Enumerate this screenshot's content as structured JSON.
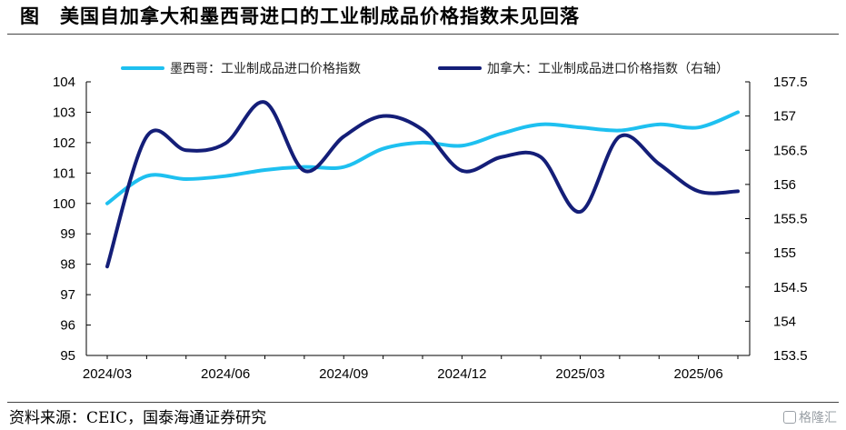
{
  "header": {
    "fig_label": "图",
    "title": "美国自加拿大和墨西哥进口的工业制成品价格指数未见回落"
  },
  "footer": {
    "source": "资料来源：CEIC，国泰海通证券研究",
    "watermark": "格隆汇"
  },
  "colors": {
    "mexico": "#1ec0f0",
    "canada": "#141e78"
  },
  "chart_data": {
    "type": "line",
    "x": [
      "2024/03",
      "2024/04",
      "2024/05",
      "2024/06",
      "2024/07",
      "2024/08",
      "2024/09",
      "2024/10",
      "2024/11",
      "2024/12",
      "2025/01",
      "2025/02",
      "2025/03",
      "2025/04",
      "2025/05",
      "2025/06",
      "2025/07"
    ],
    "x_tick_labels": [
      "2024/03",
      "2024/06",
      "2024/09",
      "2024/12",
      "2025/03",
      "2025/06"
    ],
    "series": [
      {
        "name": "墨西哥：工业制成品进口价格指数",
        "axis": "left",
        "color": "#1ec0f0",
        "values": [
          100.0,
          100.9,
          100.8,
          100.9,
          101.1,
          101.2,
          101.2,
          101.8,
          102.0,
          101.9,
          102.3,
          102.6,
          102.5,
          102.4,
          102.6,
          102.5,
          103.0
        ]
      },
      {
        "name": "加拿大：工业制成品进口价格指数（右轴）",
        "axis": "right",
        "color": "#141e78",
        "values": [
          154.8,
          156.7,
          156.5,
          156.6,
          157.2,
          156.2,
          156.7,
          157.0,
          156.8,
          156.2,
          156.4,
          156.4,
          155.6,
          156.7,
          156.3,
          155.9,
          155.9
        ]
      }
    ],
    "y_left": {
      "ylim": [
        95,
        104
      ],
      "ticks": [
        95,
        96,
        97,
        98,
        99,
        100,
        101,
        102,
        103,
        104
      ]
    },
    "y_right": {
      "ylim": [
        153.5,
        157.5
      ],
      "ticks": [
        "153.5",
        "154",
        "154.5",
        "155",
        "155.5",
        "156",
        "156.5",
        "157",
        "157.5"
      ]
    },
    "grid": false,
    "legend_position": "top"
  }
}
